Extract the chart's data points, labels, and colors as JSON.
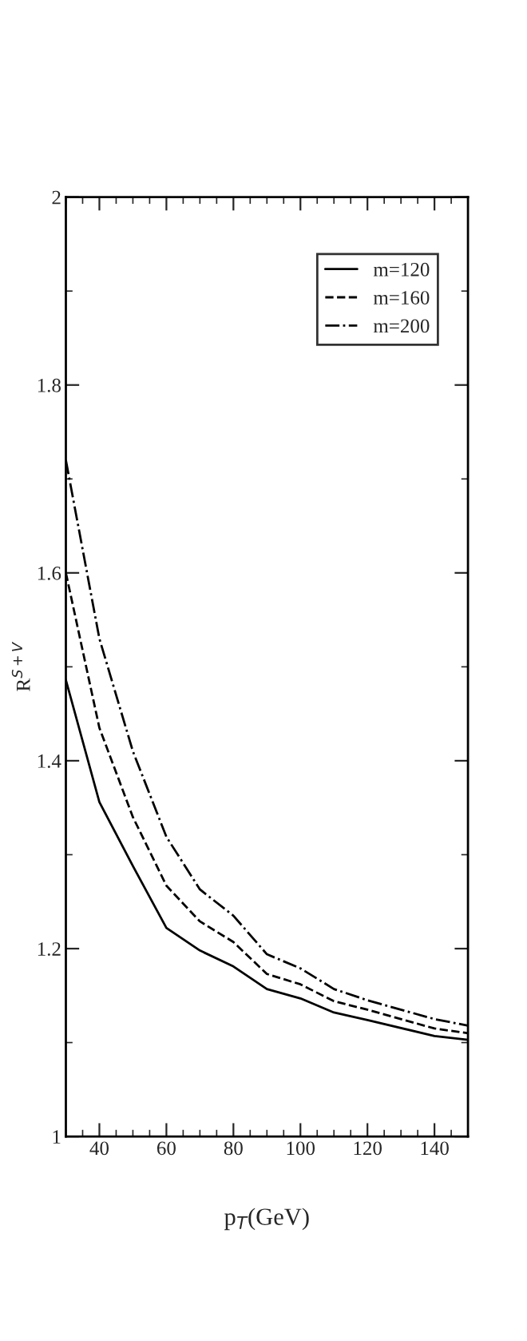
{
  "chart_data": {
    "type": "line",
    "xlabel": "p$_{T}$(GeV)",
    "ylabel": "R$^{S+V}$",
    "x": [
      30,
      40,
      50,
      60,
      70,
      80,
      90,
      100,
      110,
      120,
      140,
      150
    ],
    "series": [
      {
        "name": "m=120",
        "color": "#000000",
        "line_style": "solid",
        "values": [
          1.486,
          1.356,
          1.288,
          1.222,
          1.198,
          1.181,
          1.157,
          1.147,
          1.132,
          1.124,
          1.107,
          1.103
        ]
      },
      {
        "name": "m=160",
        "color": "#000000",
        "line_style": "dashed",
        "values": [
          1.6,
          1.435,
          1.34,
          1.267,
          1.229,
          1.207,
          1.173,
          1.162,
          1.144,
          1.135,
          1.115,
          1.11
        ]
      },
      {
        "name": "m=200",
        "color": "#000000",
        "line_style": "dashdot",
        "values": [
          1.72,
          1.53,
          1.41,
          1.319,
          1.263,
          1.235,
          1.194,
          1.179,
          1.157,
          1.145,
          1.125,
          1.118
        ]
      }
    ],
    "xlim": [
      30,
      150
    ],
    "xticks": [
      40,
      60,
      80,
      100,
      120,
      140
    ],
    "ylim": [
      1,
      2
    ],
    "yticks": [
      1,
      1.2,
      1.4,
      1.6,
      1.8,
      2
    ],
    "grid": false,
    "legend": "top right",
    "marker": "none"
  }
}
